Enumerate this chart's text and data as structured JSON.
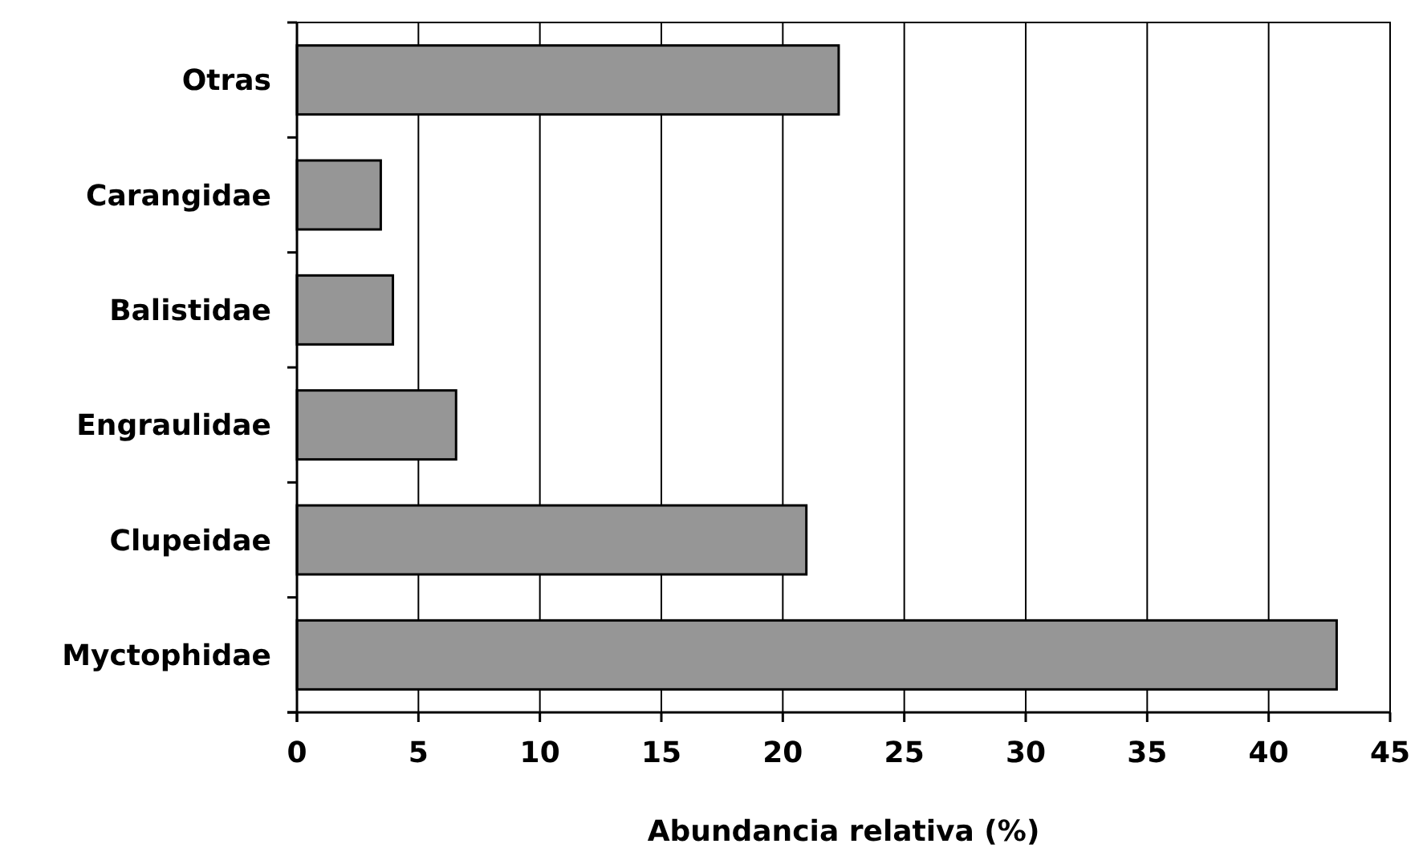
{
  "chart_data": {
    "type": "bar",
    "orientation": "horizontal",
    "xlabel": "Abundancia relativa (%)",
    "categories": [
      "Otras",
      "Carangidae",
      "Balistidae",
      "Engraulidae",
      "Clupeidae",
      "Myctophidae"
    ],
    "values": [
      22.3,
      3.45,
      3.95,
      6.55,
      20.97,
      42.8
    ],
    "color": "#969696",
    "xlim": [
      0,
      45
    ],
    "xticks": [
      0,
      5,
      10,
      15,
      20,
      25,
      30,
      35,
      40,
      45
    ],
    "grid": "x"
  }
}
